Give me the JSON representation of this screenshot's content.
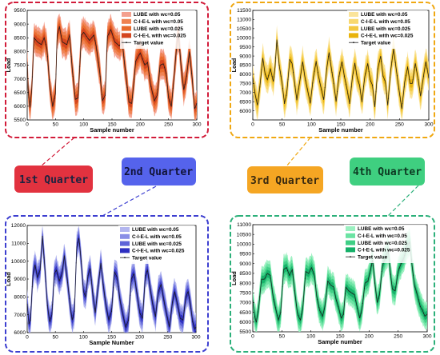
{
  "colors": {
    "q1": "#e2323f",
    "q2": "#5563ec",
    "q3": "#f5a623",
    "q4": "#3fcf80",
    "q1_frame": "#d21c3a",
    "q2_frame": "#3d3fd0",
    "q3_frame": "#f0a812",
    "q4_frame": "#2cb07a"
  },
  "labels": {
    "q1": "1st Quarter",
    "q2": "2nd Quarter",
    "q3": "3rd Quarter",
    "q4": "4th Quarter"
  },
  "chart_data": [
    {
      "id": "q1",
      "type": "area",
      "xlabel": "Sample number",
      "ylabel": "Load",
      "xlim": [
        0,
        300
      ],
      "ylim": [
        5500,
        9500
      ],
      "xticks": [
        0,
        50,
        100,
        150,
        200,
        250,
        300
      ],
      "yticks": [
        5500,
        6000,
        6500,
        7000,
        7500,
        8000,
        8500,
        9000,
        9500
      ],
      "legend": [
        "LUBE with wc=0.05",
        "C-I-E-L with wc=0.05",
        "LUBE with wc=0.025",
        "C-I-E-L with wc=0.025",
        "Target value"
      ],
      "series_colors": [
        "#f4a08e",
        "#ef8250",
        "#e86a2c",
        "#d4451e"
      ],
      "target_color": "#1a1a1a",
      "band_widths": [
        620,
        470,
        320,
        180
      ],
      "target": [
        [
          0,
          7600
        ],
        [
          2,
          6500
        ],
        [
          5,
          5950
        ],
        [
          8,
          6600
        ],
        [
          12,
          8500
        ],
        [
          18,
          8350
        ],
        [
          25,
          8250
        ],
        [
          30,
          8500
        ],
        [
          35,
          8100
        ],
        [
          40,
          6700
        ],
        [
          45,
          6000
        ],
        [
          50,
          6450
        ],
        [
          53,
          8600
        ],
        [
          57,
          8900
        ],
        [
          62,
          8350
        ],
        [
          70,
          8250
        ],
        [
          75,
          8600
        ],
        [
          80,
          7300
        ],
        [
          85,
          6250
        ],
        [
          90,
          6300
        ],
        [
          96,
          8600
        ],
        [
          100,
          8700
        ],
        [
          110,
          8400
        ],
        [
          118,
          8600
        ],
        [
          122,
          8200
        ],
        [
          128,
          7300
        ],
        [
          133,
          6200
        ],
        [
          138,
          6400
        ],
        [
          142,
          8550
        ],
        [
          148,
          8800
        ],
        [
          155,
          8350
        ],
        [
          163,
          8200
        ],
        [
          168,
          8400
        ],
        [
          173,
          7400
        ],
        [
          180,
          6150
        ],
        [
          185,
          6100
        ],
        [
          192,
          7650
        ],
        [
          200,
          7950
        ],
        [
          208,
          7500
        ],
        [
          213,
          7600
        ],
        [
          218,
          6800
        ],
        [
          225,
          6200
        ],
        [
          230,
          6400
        ],
        [
          235,
          7500
        ],
        [
          241,
          7550
        ],
        [
          246,
          7200
        ],
        [
          250,
          6300
        ],
        [
          255,
          6000
        ],
        [
          260,
          7100
        ],
        [
          265,
          8400
        ],
        [
          268,
          8550
        ],
        [
          272,
          7500
        ],
        [
          277,
          6600
        ],
        [
          282,
          7100
        ],
        [
          287,
          8000
        ],
        [
          292,
          7000
        ],
        [
          296,
          5900
        ],
        [
          300,
          6100
        ]
      ]
    },
    {
      "id": "q2",
      "type": "area",
      "xlabel": "Sample Number",
      "ylabel": "Load",
      "xlim": [
        0,
        300
      ],
      "ylim": [
        6000,
        12000
      ],
      "xticks": [
        0,
        50,
        100,
        150,
        200,
        250,
        300
      ],
      "yticks": [
        6000,
        7000,
        8000,
        9000,
        10000,
        11000,
        12000
      ],
      "legend": [
        "LUBE with wc=0.05",
        "C-I-E-L with wc=0.05",
        "LUBE with wc=0.025",
        "C-I-E-L with wc=0.025",
        "Target value"
      ],
      "series_colors": [
        "#b3b6ef",
        "#8a8fe6",
        "#5e63d8",
        "#2e2fc0"
      ],
      "target_color": "#1a1a1a",
      "band_widths": [
        900,
        700,
        480,
        260
      ],
      "target": [
        [
          0,
          7600
        ],
        [
          3,
          6500
        ],
        [
          6,
          6700
        ],
        [
          10,
          9200
        ],
        [
          14,
          9800
        ],
        [
          18,
          9100
        ],
        [
          23,
          9500
        ],
        [
          27,
          11400
        ],
        [
          31,
          9800
        ],
        [
          36,
          7500
        ],
        [
          40,
          6600
        ],
        [
          44,
          7000
        ],
        [
          48,
          9300
        ],
        [
          52,
          9500
        ],
        [
          57,
          8900
        ],
        [
          62,
          9300
        ],
        [
          66,
          10300
        ],
        [
          72,
          8800
        ],
        [
          77,
          7300
        ],
        [
          80,
          6700
        ],
        [
          84,
          7200
        ],
        [
          88,
          10800
        ],
        [
          92,
          11300
        ],
        [
          96,
          10000
        ],
        [
          100,
          8300
        ],
        [
          104,
          8000
        ],
        [
          108,
          9200
        ],
        [
          112,
          9600
        ],
        [
          116,
          8300
        ],
        [
          121,
          7100
        ],
        [
          126,
          8600
        ],
        [
          131,
          9900
        ],
        [
          135,
          8700
        ],
        [
          140,
          7500
        ],
        [
          145,
          6700
        ],
        [
          150,
          7200
        ],
        [
          155,
          9400
        ],
        [
          160,
          9100
        ],
        [
          165,
          7800
        ],
        [
          170,
          7000
        ],
        [
          175,
          6300
        ],
        [
          180,
          6700
        ],
        [
          185,
          9000
        ],
        [
          190,
          9300
        ],
        [
          195,
          8200
        ],
        [
          200,
          7100
        ],
        [
          205,
          6800
        ],
        [
          210,
          9200
        ],
        [
          214,
          9500
        ],
        [
          218,
          8600
        ],
        [
          223,
          7600
        ],
        [
          228,
          6900
        ],
        [
          233,
          8300
        ],
        [
          238,
          8700
        ],
        [
          243,
          7800
        ],
        [
          248,
          7000
        ],
        [
          253,
          6300
        ],
        [
          258,
          7700
        ],
        [
          262,
          8300
        ],
        [
          267,
          7600
        ],
        [
          272,
          6800
        ],
        [
          277,
          6700
        ],
        [
          282,
          8000
        ],
        [
          286,
          8300
        ],
        [
          290,
          7600
        ],
        [
          294,
          6600
        ],
        [
          298,
          6200
        ],
        [
          300,
          6300
        ]
      ]
    },
    {
      "id": "q3",
      "type": "area",
      "xlabel": "Sample number",
      "ylabel": "Load",
      "xlim": [
        0,
        300
      ],
      "ylim": [
        5500,
        11500
      ],
      "xticks": [
        0,
        50,
        100,
        150,
        200,
        250,
        300
      ],
      "yticks": [
        6000,
        6500,
        7000,
        7500,
        8000,
        8500,
        9000,
        9500,
        10000,
        10500,
        11000,
        11500
      ],
      "legend": [
        "LUBE with wc=0.05",
        "C-I-E-L with wc=0.05",
        "LUBE with wc=0.025",
        "C-I-E-L with wc=0.025",
        "Target value"
      ],
      "series_colors": [
        "#fbe49a",
        "#f8d86e",
        "#f3c83f",
        "#e9b30c"
      ],
      "target_color": "#1a1a1a",
      "band_widths": [
        900,
        680,
        460,
        250
      ],
      "target": [
        [
          0,
          7800
        ],
        [
          4,
          6900
        ],
        [
          8,
          6300
        ],
        [
          12,
          7300
        ],
        [
          17,
          8900
        ],
        [
          21,
          8000
        ],
        [
          25,
          7700
        ],
        [
          30,
          8300
        ],
        [
          35,
          7600
        ],
        [
          38,
          8400
        ],
        [
          41,
          9900
        ],
        [
          45,
          8500
        ],
        [
          50,
          7500
        ],
        [
          54,
          6400
        ],
        [
          58,
          7000
        ],
        [
          63,
          8800
        ],
        [
          67,
          8600
        ],
        [
          71,
          7600
        ],
        [
          75,
          6600
        ],
        [
          80,
          7600
        ],
        [
          85,
          8700
        ],
        [
          89,
          7800
        ],
        [
          93,
          7200
        ],
        [
          98,
          6400
        ],
        [
          103,
          7800
        ],
        [
          108,
          8700
        ],
        [
          112,
          7900
        ],
        [
          116,
          7300
        ],
        [
          121,
          6600
        ],
        [
          126,
          8300
        ],
        [
          130,
          9200
        ],
        [
          134,
          8300
        ],
        [
          138,
          7500
        ],
        [
          142,
          6500
        ],
        [
          147,
          7900
        ],
        [
          152,
          8700
        ],
        [
          156,
          7900
        ],
        [
          160,
          7300
        ],
        [
          165,
          6400
        ],
        [
          170,
          7900
        ],
        [
          174,
          8600
        ],
        [
          178,
          7800
        ],
        [
          182,
          7400
        ],
        [
          186,
          6500
        ],
        [
          191,
          7900
        ],
        [
          196,
          8600
        ],
        [
          200,
          7700
        ],
        [
          204,
          7400
        ],
        [
          208,
          6200
        ],
        [
          213,
          8300
        ],
        [
          218,
          9000
        ],
        [
          222,
          7900
        ],
        [
          226,
          7600
        ],
        [
          230,
          6300
        ],
        [
          235,
          8200
        ],
        [
          240,
          9400
        ],
        [
          244,
          8400
        ],
        [
          249,
          7200
        ],
        [
          254,
          6100
        ],
        [
          259,
          7600
        ],
        [
          264,
          8400
        ],
        [
          268,
          7500
        ],
        [
          272,
          7500
        ],
        [
          277,
          8600
        ],
        [
          282,
          7700
        ],
        [
          286,
          6800
        ],
        [
          291,
          7900
        ],
        [
          295,
          8700
        ],
        [
          300,
          7800
        ]
      ]
    },
    {
      "id": "q4",
      "type": "area",
      "xlabel": "Sample number",
      "ylabel": "Load",
      "xlim": [
        0,
        300
      ],
      "ylim": [
        5500,
        11000
      ],
      "xticks": [
        0,
        50,
        100,
        150,
        200,
        250,
        300
      ],
      "yticks": [
        5500,
        6000,
        6500,
        7000,
        7500,
        8000,
        8500,
        9000,
        9500,
        10000,
        10500,
        11000
      ],
      "legend": [
        "LUBE with wc=0.05",
        "C-I-E-L with wc=0.05",
        "LUBE with wc=0.025",
        "C-I-E-L with wc=0.025",
        "Target value"
      ],
      "series_colors": [
        "#9af0c0",
        "#6be3a3",
        "#3fcf85",
        "#14b068"
      ],
      "target_color": "#1a1a1a",
      "band_widths": [
        820,
        620,
        420,
        230
      ],
      "target": [
        [
          0,
          7100
        ],
        [
          3,
          6300
        ],
        [
          6,
          6000
        ],
        [
          10,
          6700
        ],
        [
          15,
          8200
        ],
        [
          20,
          8200
        ],
        [
          25,
          8500
        ],
        [
          30,
          8400
        ],
        [
          35,
          7300
        ],
        [
          40,
          6600
        ],
        [
          44,
          6100
        ],
        [
          48,
          6500
        ],
        [
          53,
          8700
        ],
        [
          58,
          8800
        ],
        [
          63,
          8400
        ],
        [
          68,
          8700
        ],
        [
          72,
          7600
        ],
        [
          77,
          6400
        ],
        [
          82,
          6100
        ],
        [
          86,
          6700
        ],
        [
          91,
          8600
        ],
        [
          96,
          8500
        ],
        [
          101,
          8800
        ],
        [
          106,
          8400
        ],
        [
          110,
          7300
        ],
        [
          115,
          6600
        ],
        [
          120,
          6300
        ],
        [
          124,
          6800
        ],
        [
          129,
          8100
        ],
        [
          134,
          7900
        ],
        [
          139,
          7800
        ],
        [
          143,
          7200
        ],
        [
          148,
          6700
        ],
        [
          152,
          6200
        ],
        [
          156,
          6400
        ],
        [
          160,
          7800
        ],
        [
          165,
          7600
        ],
        [
          170,
          7500
        ],
        [
          175,
          7400
        ],
        [
          180,
          6700
        ],
        [
          184,
          6200
        ],
        [
          188,
          6700
        ],
        [
          193,
          8000
        ],
        [
          198,
          8100
        ],
        [
          202,
          8600
        ],
        [
          206,
          9200
        ],
        [
          210,
          8000
        ],
        [
          214,
          7000
        ],
        [
          218,
          7400
        ],
        [
          223,
          8900
        ],
        [
          228,
          9300
        ],
        [
          233,
          9700
        ],
        [
          236,
          8700
        ],
        [
          240,
          7700
        ],
        [
          245,
          7600
        ],
        [
          250,
          8600
        ],
        [
          255,
          9000
        ],
        [
          260,
          9300
        ],
        [
          265,
          9900
        ],
        [
          270,
          10100
        ],
        [
          274,
          8900
        ],
        [
          278,
          7900
        ],
        [
          283,
          7400
        ],
        [
          288,
          6800
        ],
        [
          292,
          6600
        ],
        [
          296,
          6300
        ],
        [
          300,
          6400
        ]
      ]
    }
  ]
}
